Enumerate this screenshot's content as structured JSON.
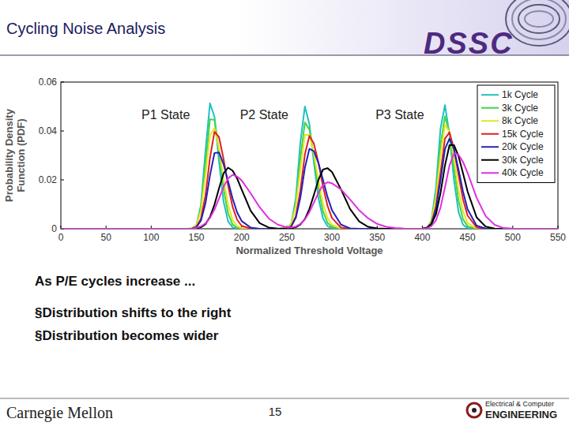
{
  "slide": {
    "title": "Cycling Noise Analysis",
    "logo": "DSSC",
    "lead": "As P/E cycles increase ...",
    "bullets": [
      "§Distribution shifts to the right",
      "§Distribution becomes wider"
    ],
    "footer_left": "Carnegie Mellon",
    "page": 15,
    "footer_right_top": "Electrical & Computer",
    "footer_right_bottom": "ENGINEERING"
  },
  "chart_data": {
    "type": "line",
    "x_label": "Normalized Threshold Voltage",
    "y_label": "Probability Density Function (PDF)",
    "xlim": [
      0,
      550
    ],
    "xticks": [
      0,
      50,
      100,
      150,
      200,
      250,
      300,
      350,
      400,
      450,
      500,
      550
    ],
    "ylim": [
      0,
      0.06
    ],
    "yticks": [
      0,
      0.02,
      0.04,
      0.06
    ],
    "grid": false,
    "legend": "northeast",
    "annotations": [
      {
        "text": "P1 State",
        "x": 116,
        "y": 0.045
      },
      {
        "text": "P2 State",
        "x": 225,
        "y": 0.045
      },
      {
        "text": "P3 State",
        "x": 375,
        "y": 0.045
      }
    ],
    "x": [
      0,
      100,
      140,
      145,
      150,
      155,
      160,
      165,
      170,
      175,
      180,
      185,
      190,
      195,
      200,
      210,
      220,
      230,
      240,
      250,
      255,
      260,
      265,
      270,
      275,
      280,
      285,
      290,
      295,
      300,
      310,
      320,
      330,
      340,
      350,
      360,
      370,
      380,
      390,
      400,
      405,
      410,
      415,
      420,
      425,
      430,
      435,
      440,
      445,
      450,
      460,
      470,
      480,
      490,
      500,
      510,
      520,
      550
    ],
    "series": [
      {
        "name": "1k Cycle",
        "color": "#1fbfc4",
        "values": [
          0,
          0,
          0,
          0.0001,
          0.0015,
          0.0097,
          0.0317,
          0.0513,
          0.0458,
          0.0276,
          0.0112,
          0.0031,
          0.0006,
          0.0001,
          0,
          0,
          0,
          0,
          0,
          0.0002,
          0.0022,
          0.0125,
          0.0353,
          0.05,
          0.0428,
          0.027,
          0.0125,
          0.0043,
          0.0011,
          0.0002,
          0,
          0,
          0,
          0,
          0,
          0,
          0,
          0,
          0,
          0,
          0.0003,
          0.0034,
          0.0165,
          0.0408,
          0.0506,
          0.0385,
          0.0199,
          0.0069,
          0.0016,
          0.0003,
          0,
          0,
          0,
          0,
          0,
          0,
          0,
          0
        ]
      },
      {
        "name": "3k Cycle",
        "color": "#44d444",
        "values": [
          0,
          0,
          0,
          0.0002,
          0.0016,
          0.0085,
          0.0263,
          0.0448,
          0.0445,
          0.0316,
          0.0166,
          0.0063,
          0.0018,
          0.0004,
          0.0001,
          0,
          0,
          0,
          0,
          0.0002,
          0.0021,
          0.0105,
          0.0287,
          0.0435,
          0.0406,
          0.0294,
          0.0165,
          0.0072,
          0.0025,
          0.0007,
          0,
          0,
          0,
          0,
          0,
          0,
          0,
          0,
          0,
          0,
          0.0004,
          0.0032,
          0.014,
          0.0341,
          0.046,
          0.0393,
          0.0249,
          0.0115,
          0.0039,
          0.001,
          0,
          0,
          0,
          0,
          0,
          0,
          0,
          0
        ]
      },
      {
        "name": "8k Cycle",
        "color": "#e6e61e",
        "values": [
          0,
          0,
          0,
          0.0002,
          0.0016,
          0.0074,
          0.0219,
          0.0383,
          0.0412,
          0.0329,
          0.0204,
          0.0099,
          0.0037,
          0.0011,
          0.0003,
          0,
          0,
          0,
          0,
          0.0003,
          0.0021,
          0.0093,
          0.0243,
          0.0384,
          0.0385,
          0.0306,
          0.0199,
          0.0104,
          0.0045,
          0.0016,
          0.0001,
          0,
          0,
          0,
          0,
          0,
          0,
          0,
          0,
          0,
          0.0005,
          0.0031,
          0.0126,
          0.0297,
          0.0426,
          0.0396,
          0.0287,
          0.0161,
          0.0071,
          0.0024,
          0.0001,
          0,
          0,
          0,
          0,
          0,
          0,
          0
        ]
      },
      {
        "name": "15k Cycle",
        "color": "#e02020",
        "values": [
          0,
          0,
          0,
          0.0001,
          0.0008,
          0.0041,
          0.0136,
          0.029,
          0.0397,
          0.0375,
          0.0286,
          0.0178,
          0.009,
          0.0037,
          0.0012,
          0.0001,
          0,
          0,
          0,
          0.0002,
          0.0011,
          0.0051,
          0.0157,
          0.0304,
          0.038,
          0.0348,
          0.027,
          0.0174,
          0.0095,
          0.0044,
          0.0005,
          0,
          0,
          0,
          0,
          0,
          0,
          0,
          0,
          0,
          0.0004,
          0.0022,
          0.009,
          0.0226,
          0.0369,
          0.0394,
          0.0326,
          0.0221,
          0.012,
          0.0054,
          0.0006,
          0,
          0,
          0,
          0,
          0,
          0,
          0
        ]
      },
      {
        "name": "20k Cycle",
        "color": "#2222b8",
        "values": [
          0,
          0,
          0,
          0.0001,
          0.0007,
          0.0033,
          0.0104,
          0.0218,
          0.031,
          0.0312,
          0.0265,
          0.0194,
          0.0124,
          0.0067,
          0.0032,
          0.0005,
          0,
          0,
          0,
          0.0002,
          0.001,
          0.0045,
          0.0127,
          0.0249,
          0.0327,
          0.0317,
          0.0269,
          0.0201,
          0.0131,
          0.0076,
          0.0017,
          0.0002,
          0,
          0,
          0,
          0,
          0,
          0,
          0,
          0,
          0.0004,
          0.0022,
          0.008,
          0.0196,
          0.0326,
          0.0369,
          0.0326,
          0.0242,
          0.0152,
          0.008,
          0.0013,
          0.0001,
          0,
          0,
          0,
          0,
          0,
          0
        ]
      },
      {
        "name": "30k Cycle",
        "color": "#000000",
        "values": [
          0,
          0,
          0,
          0,
          0.0002,
          0.0006,
          0.0019,
          0.0048,
          0.0099,
          0.0165,
          0.0226,
          0.025,
          0.0238,
          0.0206,
          0.0161,
          0.0074,
          0.0023,
          0.0005,
          0.0001,
          0,
          0.0002,
          0.0006,
          0.0017,
          0.004,
          0.0081,
          0.0139,
          0.02,
          0.0242,
          0.0248,
          0.0232,
          0.0161,
          0.0081,
          0.003,
          0.0008,
          0.0002,
          0,
          0,
          0,
          0,
          0.0001,
          0.0004,
          0.0018,
          0.0059,
          0.0144,
          0.0259,
          0.0342,
          0.0342,
          0.0297,
          0.0227,
          0.0153,
          0.0047,
          0.0009,
          0.0001,
          0,
          0,
          0,
          0,
          0
        ]
      },
      {
        "name": "40k Cycle",
        "color": "#e030e0",
        "values": [
          0,
          0,
          0,
          0.0001,
          0.0004,
          0.001,
          0.0022,
          0.0044,
          0.0079,
          0.0124,
          0.0171,
          0.0206,
          0.022,
          0.0214,
          0.0198,
          0.0145,
          0.0088,
          0.0042,
          0.0017,
          0.0006,
          0.0006,
          0.0009,
          0.002,
          0.0038,
          0.0068,
          0.0107,
          0.0147,
          0.0179,
          0.019,
          0.0186,
          0.0161,
          0.012,
          0.0076,
          0.0043,
          0.002,
          0.0008,
          0.0003,
          0.0001,
          0,
          0,
          0.0002,
          0.0011,
          0.0034,
          0.0086,
          0.0169,
          0.0259,
          0.0308,
          0.0303,
          0.0273,
          0.0229,
          0.0127,
          0.0052,
          0.0016,
          0.0003,
          0.0001,
          0,
          0,
          0
        ]
      }
    ]
  }
}
